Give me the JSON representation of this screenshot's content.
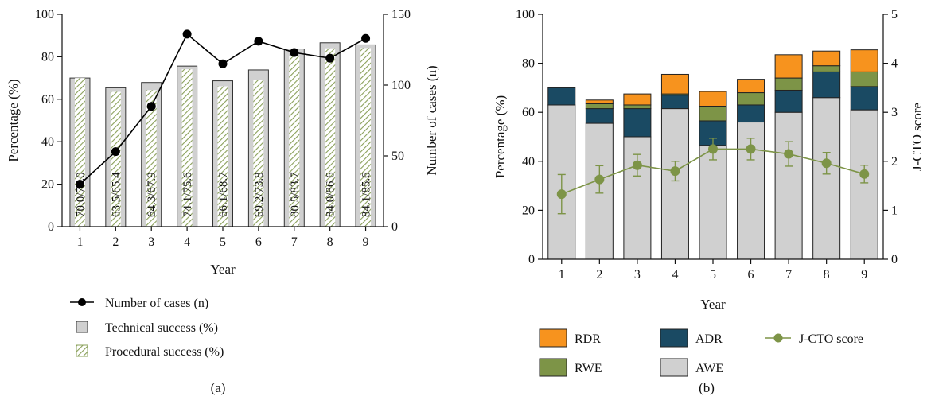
{
  "chart_data": [
    {
      "type": "bar",
      "panel_label": "(a)",
      "x": [
        1,
        2,
        3,
        4,
        5,
        6,
        7,
        8,
        9
      ],
      "xlabel": "Year",
      "ylabel": "Percentage (%)",
      "ylim": [
        0,
        100
      ],
      "y_ticks": [
        0,
        20,
        40,
        60,
        80,
        100
      ],
      "y2label": "Number of cases (n)",
      "y2lim": [
        0,
        150
      ],
      "y2_ticks": [
        0,
        50,
        100,
        150
      ],
      "series": [
        {
          "name": "Technical success (%)",
          "axis": "left",
          "values": [
            70.0,
            65.4,
            67.9,
            75.6,
            68.7,
            73.8,
            83.7,
            86.6,
            85.6
          ],
          "color": "#d0d0d0"
        },
        {
          "name": "Procedural success (%)",
          "axis": "left",
          "values": [
            70.0,
            63.5,
            64.3,
            74.1,
            66.1,
            69.2,
            80.5,
            84.0,
            84.1
          ],
          "color": "#8aa05a"
        },
        {
          "name": "Number of cases (n)",
          "axis": "right",
          "type": "line",
          "values": [
            30,
            53,
            85,
            136,
            115,
            131,
            123,
            119,
            133
          ],
          "color": "#000000"
        }
      ],
      "bar_labels": [
        "70.0/70.0",
        "63.5/65.4",
        "64.3/67.9",
        "74.1/75.6",
        "66.1/68.7",
        "69.2/73.8",
        "80.5/83.7",
        "84.0/86.6",
        "84.1/85.6"
      ],
      "legend": [
        "Number of cases (n)",
        "Technical success (%)",
        "Procedural success (%)"
      ],
      "legend_placement": "bottom"
    },
    {
      "type": "bar",
      "stacked": true,
      "panel_label": "(b)",
      "x": [
        1,
        2,
        3,
        4,
        5,
        6,
        7,
        8,
        9
      ],
      "xlabel": "Year",
      "ylabel": "Percentage (%)",
      "ylim": [
        0,
        100
      ],
      "y_ticks": [
        0,
        20,
        40,
        60,
        80,
        100
      ],
      "y2label": "J-CTO score",
      "y2lim": [
        0,
        5
      ],
      "y2_ticks": [
        0,
        1,
        2,
        3,
        4,
        5
      ],
      "series": [
        {
          "name": "AWE",
          "values": [
            63,
            55.5,
            50,
            61.5,
            46.5,
            56,
            60,
            66,
            61
          ],
          "color": "#d0d0d0"
        },
        {
          "name": "ADR",
          "values": [
            7,
            6,
            11.5,
            5.5,
            10,
            7,
            9,
            10.5,
            9.5
          ],
          "color": "#1a4a63"
        },
        {
          "name": "RWE",
          "values": [
            0,
            2,
            1.5,
            0.5,
            6,
            5,
            5,
            2.5,
            6
          ],
          "color": "#7d9447"
        },
        {
          "name": "RDR",
          "values": [
            0,
            1.5,
            4.5,
            8,
            6,
            5.5,
            9.5,
            6,
            9
          ],
          "color": "#f7931e"
        },
        {
          "name": "J-CTO score",
          "axis": "right",
          "type": "line",
          "values": [
            1.33,
            1.63,
            1.92,
            1.8,
            2.25,
            2.25,
            2.15,
            1.96,
            1.74
          ],
          "error": [
            0.4,
            0.28,
            0.22,
            0.2,
            0.22,
            0.22,
            0.25,
            0.22,
            0.18
          ],
          "color": "#7d9447"
        }
      ],
      "legend": [
        "RDR",
        "ADR",
        "J-CTO score",
        "RWE",
        "AWE"
      ],
      "legend_placement": "bottom"
    }
  ]
}
